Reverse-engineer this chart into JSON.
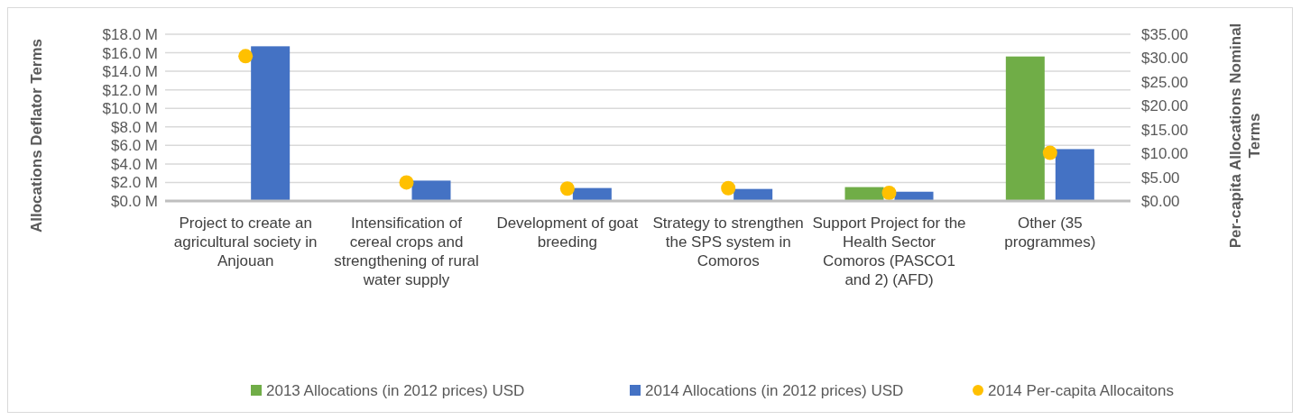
{
  "chart_data": {
    "type": "bar",
    "xlabel": null,
    "ylabel": "Allocations Deflator Terms",
    "y2label": "Per-capita Allocations Nominal Terms",
    "categories": [
      "Project to create an agricultural society in Anjouan",
      "Intensification of cereal crops and strengthening of rural water supply",
      "Development of goat breeding",
      "Strategy to strengthen the SPS system in Comoros",
      "Support Project for the Health Sector Comoros (PASCO1 and 2) (AFD)",
      "Other (35 programmes)"
    ],
    "series": [
      {
        "name": "2013 Allocations (in 2012 prices) USD",
        "color": "#70ad47",
        "values": [
          0,
          0,
          0,
          0,
          1.5,
          15.6
        ]
      },
      {
        "name": "2014 Allocations (in 2012 prices) USD",
        "color": "#4472c4",
        "values": [
          16.7,
          2.2,
          1.4,
          1.3,
          1.0,
          5.6
        ]
      },
      {
        "name": "2014 Per-capita Allocaitons",
        "type": "scatter",
        "axis": "y2",
        "color": "#ffc000",
        "marker": "circle",
        "x": [
          "Project to create an agricultural society in Anjouan",
          "Intensification of cereal crops and strengthening of rural water supply",
          "Development of goat breeding",
          "Strategy to strengthen the SPS system in Comoros",
          "Support Project for the Health Sector Comoros (PASCO1 and 2) (AFD)",
          "Other (35 programmes)"
        ],
        "values": [
          30.4,
          3.9,
          2.6,
          2.7,
          1.7,
          10.1
        ]
      }
    ],
    "ylim": [
      0,
      18
    ],
    "yticks": [
      {
        "value": 0,
        "label": "$0.0 M"
      },
      {
        "value": 2,
        "label": "$2.0 M"
      },
      {
        "value": 4,
        "label": "$4.0 M"
      },
      {
        "value": 6,
        "label": "$6.0 M"
      },
      {
        "value": 8,
        "label": "$8.0 M"
      },
      {
        "value": 10,
        "label": "$10.0 M"
      },
      {
        "value": 12,
        "label": "$12.0 M"
      },
      {
        "value": 14,
        "label": "$14.0 M"
      },
      {
        "value": 16,
        "label": "$16.0 M"
      },
      {
        "value": 18,
        "label": "$18.0 M"
      }
    ],
    "y2lim": [
      0,
      35
    ],
    "y2ticks": [
      {
        "value": 0,
        "label": "$0.00"
      },
      {
        "value": 5,
        "label": "$5.00"
      },
      {
        "value": 10,
        "label": "$10.00"
      },
      {
        "value": 15,
        "label": "$15.00"
      },
      {
        "value": 20,
        "label": "$20.00"
      },
      {
        "value": 25,
        "label": "$25.00"
      },
      {
        "value": 30,
        "label": "$30.00"
      },
      {
        "value": 35,
        "label": "$35.00"
      }
    ],
    "grid": "y",
    "legend": "bottom"
  }
}
